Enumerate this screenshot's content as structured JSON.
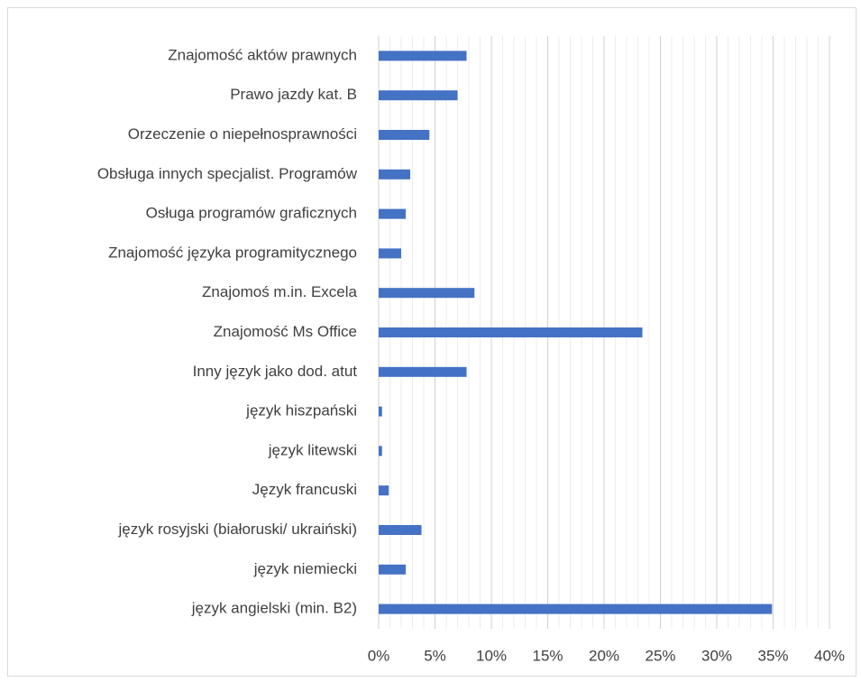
{
  "chart_data": {
    "type": "hbar",
    "categories": [
      "Znajomość aktów prawnych",
      "Prawo jazdy kat. B",
      "Orzeczenie o niepełnosprawności",
      "Obsługa innych specjalist. Programów",
      "Osługa programów graficznych",
      "Znajomość języka programitycznego",
      "Znajomoś m.in. Excela",
      "Znajomość Ms Office",
      "Inny język jako dod. atut",
      "język hiszpański",
      "język litewski",
      "Język francuski",
      "język rosyjski (białoruski/ ukraiński)",
      "język niemiecki",
      "język angielski (min. B2)"
    ],
    "values": [
      7.8,
      7.0,
      4.5,
      2.8,
      2.4,
      2.0,
      8.5,
      23.4,
      7.8,
      0.3,
      0.3,
      0.9,
      3.8,
      2.4,
      34.9
    ],
    "color": "#4472c4",
    "xlim": [
      0,
      40
    ],
    "xticks": [
      {
        "value": 0,
        "label": "0%"
      },
      {
        "value": 5,
        "label": "5%"
      },
      {
        "value": 10,
        "label": "10%"
      },
      {
        "value": 15,
        "label": "15%"
      },
      {
        "value": 20,
        "label": "20%"
      },
      {
        "value": 25,
        "label": "25%"
      },
      {
        "value": 30,
        "label": "30%"
      },
      {
        "value": 35,
        "label": "35%"
      },
      {
        "value": 40,
        "label": "40%"
      }
    ],
    "minor_xticks": [
      1,
      2,
      3,
      4,
      6,
      7,
      8,
      9,
      11,
      12,
      13,
      14,
      16,
      17,
      18,
      19,
      21,
      22,
      23,
      24,
      26,
      27,
      28,
      29,
      31,
      32,
      33,
      34,
      36,
      37,
      38,
      39
    ],
    "grid": true
  }
}
